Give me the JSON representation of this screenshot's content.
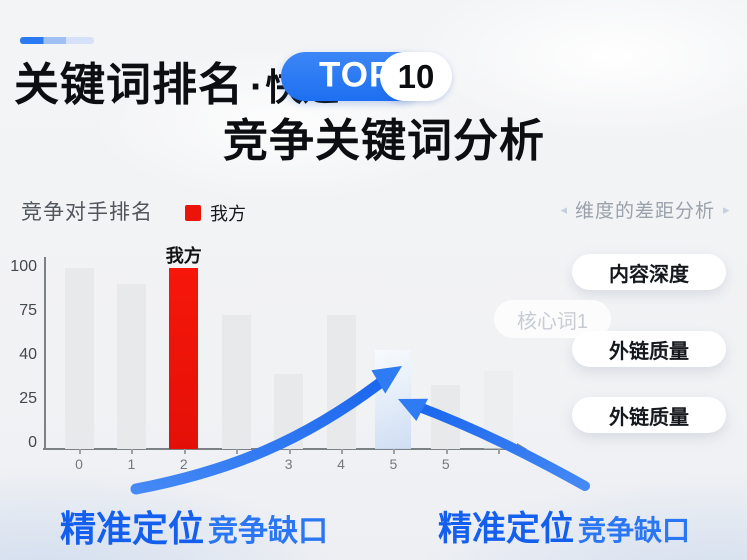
{
  "header": {
    "title_main": "关键词排名",
    "title_dot": "·",
    "title_speed": "快速",
    "badge_label": "TOP",
    "badge_number": "10",
    "title_line2": "竞争关键词分析"
  },
  "chart_data": {
    "type": "bar",
    "title": "竞争对手排名",
    "legend": [
      {
        "label": "我方",
        "color": "#ec1408"
      }
    ],
    "legend_position": "top",
    "categories": [
      "0",
      "1",
      "2",
      "",
      "3",
      "4",
      "5",
      "5",
      ""
    ],
    "values": [
      100,
      91,
      100,
      73,
      34,
      73,
      45,
      30,
      35
    ],
    "bar_styles": [
      "gray",
      "gray",
      "red",
      "gray",
      "gray",
      "gray",
      "highlight",
      "gray",
      "faint"
    ],
    "highlight_label": "我方",
    "highlight_label_index": 2,
    "gap_bar_index": 6,
    "y_ticks": [
      0,
      25,
      40,
      75,
      100
    ],
    "ylim": [
      0,
      100
    ],
    "grid": false
  },
  "panel": {
    "left_arrow": "◂",
    "right_arrow": "▸",
    "title": "维度的差距分析",
    "buttons": [
      "内容深度",
      "外链质量",
      "外链质量"
    ]
  },
  "chip_label": "核心词1",
  "callouts": {
    "left": {
      "strong": "精准定位",
      "rest": "竞争缺口"
    },
    "right": {
      "strong": "精准定位",
      "rest": "竞争缺口"
    }
  },
  "colors": {
    "accent_blue": "#2274f2",
    "our_red": "#ec1408",
    "arrow_blue": "#2f7bf3",
    "highlight_bar": "#dbe5f7"
  }
}
